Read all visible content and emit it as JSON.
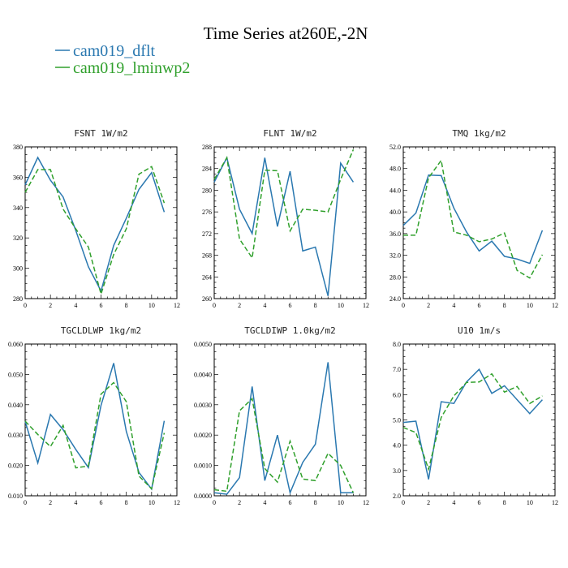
{
  "figure": {
    "title": "Time Series at260E,-2N"
  },
  "legend": [
    {
      "name": "cam019_dflt",
      "color": "#2a78b0",
      "dash": ""
    },
    {
      "name": "cam019_lminwp2",
      "color": "#30a02c",
      "dash": "6,3"
    }
  ],
  "chart_data": [
    {
      "type": "line",
      "title_var": "FSNT",
      "title_units": "1W/m2",
      "x": [
        0,
        1,
        2,
        3,
        4,
        5,
        6,
        7,
        8,
        9,
        10,
        11
      ],
      "xlim": [
        0,
        12
      ],
      "xticks": [
        "0",
        "2",
        "4",
        "6",
        "8",
        "10",
        "12"
      ],
      "ylim": [
        280,
        380
      ],
      "yticks": [
        "280",
        "300",
        "320",
        "340",
        "360",
        "380"
      ],
      "series": [
        {
          "name": "cam019_dflt",
          "values": [
            355,
            373,
            358,
            347,
            325,
            301,
            285,
            315,
            333,
            352,
            363,
            337
          ]
        },
        {
          "name": "cam019_lminwp2",
          "values": [
            350,
            365,
            365,
            339,
            326,
            314,
            283,
            309,
            326,
            362,
            367,
            343
          ]
        }
      ]
    },
    {
      "type": "line",
      "title_var": "FLNT",
      "title_units": "1W/m2",
      "x": [
        0,
        1,
        2,
        3,
        4,
        5,
        6,
        7,
        8,
        9,
        10,
        11
      ],
      "xlim": [
        0,
        12
      ],
      "xticks": [
        "0",
        "2",
        "4",
        "6",
        "8",
        "10",
        "12"
      ],
      "ylim": [
        260,
        288
      ],
      "yticks": [
        "260",
        "264",
        "268",
        "272",
        "276",
        "280",
        "284",
        "288"
      ],
      "series": [
        {
          "name": "cam019_dflt",
          "values": [
            281.5,
            286,
            276.5,
            272,
            286,
            273.3,
            283.5,
            268.8,
            269.5,
            260.5,
            285,
            281.5
          ]
        },
        {
          "name": "cam019_lminwp2",
          "values": [
            282,
            286,
            271,
            267.5,
            283.7,
            283.6,
            272.5,
            276.5,
            276.3,
            276,
            282,
            287.5
          ]
        }
      ]
    },
    {
      "type": "line",
      "title_var": "TMQ",
      "title_units": "1kg/m2",
      "x": [
        0,
        1,
        2,
        3,
        4,
        5,
        6,
        7,
        8,
        9,
        10,
        11
      ],
      "xlim": [
        0,
        12
      ],
      "xticks": [
        "0",
        "2",
        "4",
        "6",
        "8",
        "10",
        "12"
      ],
      "ylim": [
        24,
        52
      ],
      "yticks": [
        "24.0",
        "28.0",
        "32.0",
        "36.0",
        "40.0",
        "44.0",
        "48.0",
        "52.0"
      ],
      "series": [
        {
          "name": "cam019_dflt",
          "values": [
            37.5,
            39.8,
            46.8,
            46.7,
            40.7,
            36.3,
            32.8,
            34.6,
            31.8,
            31.3,
            30.5,
            36.6
          ]
        },
        {
          "name": "cam019_lminwp2",
          "values": [
            35.7,
            35.7,
            46.3,
            49.5,
            36.3,
            35.7,
            34.5,
            35,
            36.1,
            29.2,
            27.8,
            32.1
          ]
        }
      ]
    },
    {
      "type": "line",
      "title_var": "TGCLDLWP",
      "title_units": "1kg/m2",
      "x": [
        0,
        1,
        2,
        3,
        4,
        5,
        6,
        7,
        8,
        9,
        10,
        11
      ],
      "xlim": [
        0,
        12
      ],
      "xticks": [
        "0",
        "2",
        "4",
        "6",
        "8",
        "10",
        "12"
      ],
      "ylim": [
        0.01,
        0.06
      ],
      "yticks": [
        "0.010",
        "0.020",
        "0.030",
        "0.040",
        "0.050",
        "0.060"
      ],
      "series": [
        {
          "name": "cam019_dflt",
          "values": [
            0.0345,
            0.0208,
            0.0368,
            0.0318,
            0.0253,
            0.0193,
            0.0398,
            0.0537,
            0.0312,
            0.0177,
            0.0122,
            0.0347
          ]
        },
        {
          "name": "cam019_lminwp2",
          "values": [
            0.0346,
            0.0302,
            0.0262,
            0.0332,
            0.0192,
            0.0198,
            0.0435,
            0.0473,
            0.041,
            0.0165,
            0.0123,
            0.0307
          ]
        }
      ]
    },
    {
      "type": "line",
      "title_var": "TGCLDIWP",
      "title_units": "1.0kg/m2",
      "x": [
        0,
        1,
        2,
        3,
        4,
        5,
        6,
        7,
        8,
        9,
        10,
        11
      ],
      "xlim": [
        0,
        12
      ],
      "xticks": [
        "0",
        "2",
        "4",
        "6",
        "8",
        "10",
        "12"
      ],
      "ylim": [
        0,
        0.005
      ],
      "yticks": [
        "0.0000",
        "0.0010",
        "0.0020",
        "0.0030",
        "0.0040",
        "0.0050"
      ],
      "series": [
        {
          "name": "cam019_dflt",
          "values": [
            0.0001,
            5e-05,
            0.0006,
            0.0036,
            0.0005,
            0.002,
            0.0001,
            0.0011,
            0.0017,
            0.0044,
            0.0001,
            0.0001
          ]
        },
        {
          "name": "cam019_lminwp2",
          "values": [
            0.0002,
            0.00015,
            0.0028,
            0.0032,
            0.0009,
            0.00045,
            0.0018,
            0.00055,
            0.0005,
            0.0014,
            0.001,
            0.0001
          ]
        }
      ]
    },
    {
      "type": "line",
      "title_var": "U10",
      "title_units": "1m/s",
      "x": [
        0,
        1,
        2,
        3,
        4,
        5,
        6,
        7,
        8,
        9,
        10,
        11
      ],
      "xlim": [
        0,
        12
      ],
      "xticks": [
        "0",
        "2",
        "4",
        "6",
        "8",
        "10",
        "12"
      ],
      "ylim": [
        2,
        8
      ],
      "yticks": [
        "2.0",
        "3.0",
        "4.0",
        "5.0",
        "6.0",
        "7.0",
        "8.0"
      ],
      "series": [
        {
          "name": "cam019_dflt",
          "values": [
            4.9,
            4.95,
            2.65,
            5.72,
            5.65,
            6.5,
            7,
            6.05,
            6.35,
            5.8,
            5.25,
            5.8
          ]
        },
        {
          "name": "cam019_lminwp2",
          "values": [
            4.7,
            4.5,
            3.05,
            5.1,
            5.95,
            6.48,
            6.5,
            6.82,
            6.1,
            6.32,
            5.65,
            5.95
          ]
        }
      ]
    }
  ]
}
